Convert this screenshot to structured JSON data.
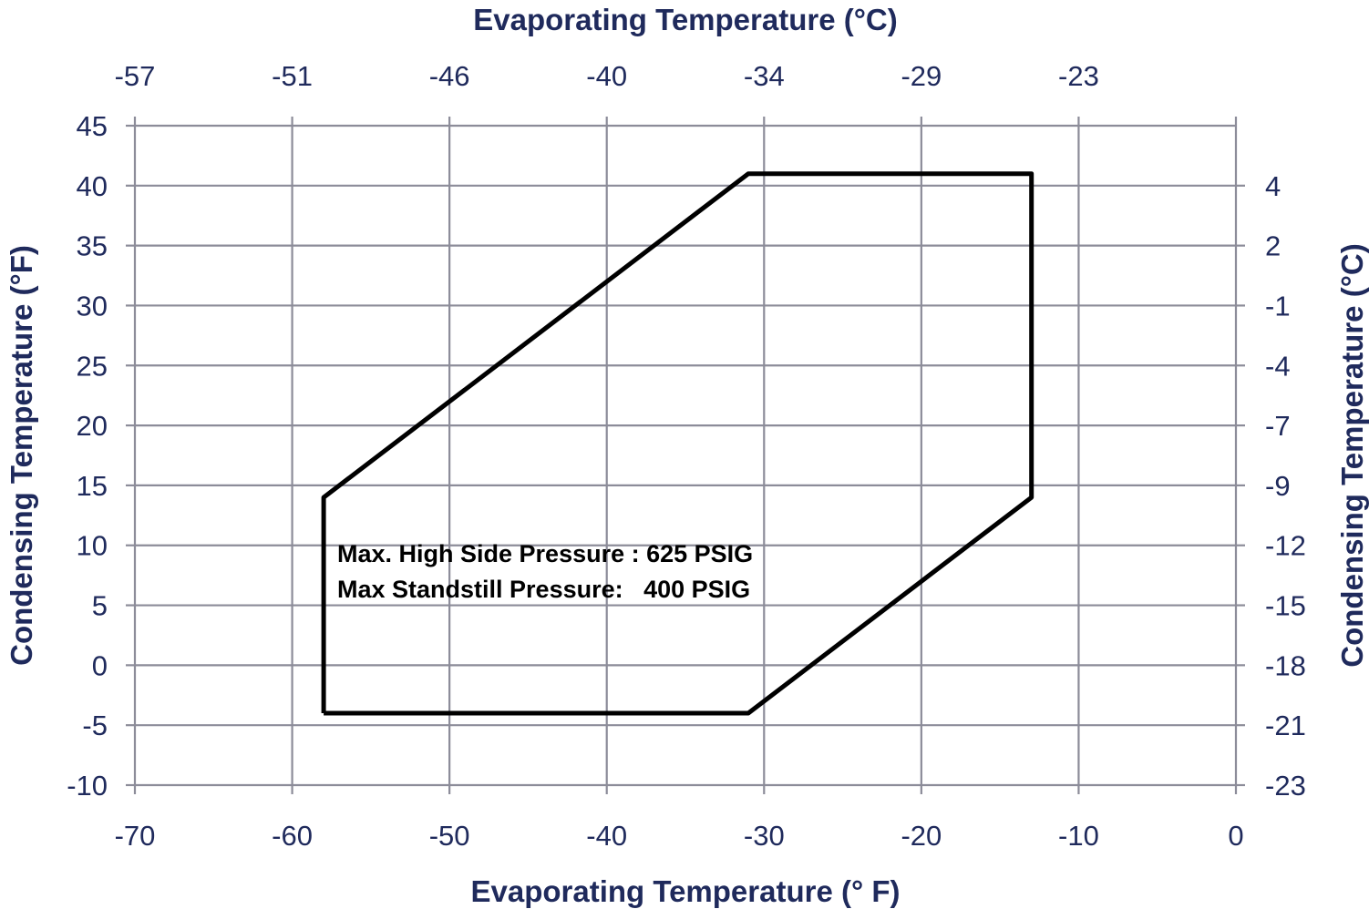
{
  "chart_data": {
    "type": "line",
    "x_bottom": {
      "label": "Evaporating Temperature (° F)",
      "range": [
        -70,
        0
      ],
      "ticks": [
        -70,
        -60,
        -50,
        -40,
        -30,
        -20,
        -10,
        0
      ],
      "tick_labels": [
        "-70",
        "-60",
        "-50",
        "-40",
        "-30",
        "-20",
        "-10",
        "0"
      ]
    },
    "x_top": {
      "label": "Evaporating Temperature (°C)",
      "ticks": [
        -70,
        -60,
        -50,
        -40,
        -30,
        -20,
        -10
      ],
      "tick_labels": [
        "-57",
        "-51",
        "-46",
        "-40",
        "-34",
        "-29",
        "-23"
      ]
    },
    "y_left": {
      "label": "Condensing Temperature (°F)",
      "range": [
        -10,
        45
      ],
      "ticks": [
        -10,
        -5,
        0,
        5,
        10,
        15,
        20,
        25,
        30,
        35,
        40,
        45
      ],
      "tick_labels": [
        "-10",
        "-5",
        "0",
        "5",
        "10",
        "15",
        "20",
        "25",
        "30",
        "35",
        "40",
        "45"
      ]
    },
    "y_right": {
      "label": "Condensing Temperature (°C)",
      "ticks": [
        -10,
        -5,
        0,
        5,
        10,
        15,
        20,
        25,
        30,
        35,
        40
      ],
      "tick_labels": [
        "-23",
        "-21",
        "-18",
        "-15",
        "-12",
        "-9",
        "-7",
        "-4",
        "-1",
        "2",
        "4"
      ]
    },
    "grid": true,
    "series": [
      {
        "values": [
          {
            "x": -58,
            "y": -4
          },
          {
            "x": -58,
            "y": 14
          },
          {
            "x": -31,
            "y": 41
          },
          {
            "x": -13,
            "y": 41
          },
          {
            "x": -13,
            "y": 14
          },
          {
            "x": -31,
            "y": -4
          },
          {
            "x": -58,
            "y": -4
          }
        ],
        "color": "#000000"
      }
    ],
    "annotations": [
      "Max. High Side Pressure : 625 PSIG",
      "Max Standstill Pressure:   400 PSIG"
    ]
  },
  "colors": {
    "grid": "#8c8c99",
    "text": "#1f2a5c",
    "envelope": "#000000"
  }
}
